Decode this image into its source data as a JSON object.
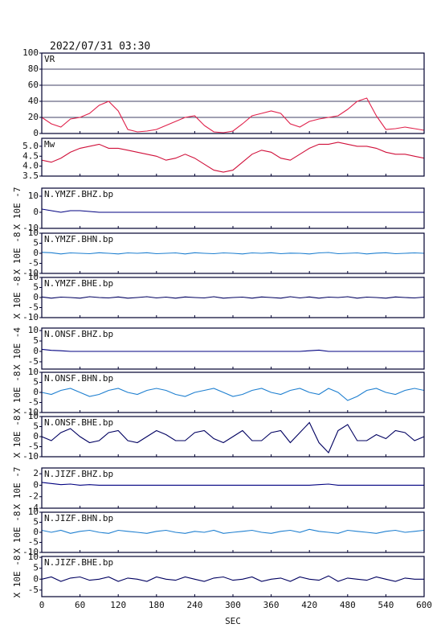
{
  "title": "2022/07/31 03:30",
  "chart_data": [
    {
      "type": "line",
      "title": "VR",
      "color": "#e0204a",
      "grid": true,
      "x": [
        0,
        15,
        30,
        45,
        60,
        75,
        90,
        105,
        120,
        135,
        150,
        165,
        180,
        195,
        210,
        225,
        240,
        255,
        270,
        285,
        300,
        315,
        330,
        345,
        360,
        375,
        390,
        405,
        420,
        435,
        450,
        465,
        480,
        495,
        510,
        525,
        540,
        555,
        570,
        585,
        600
      ],
      "values": [
        20,
        12,
        8,
        18,
        20,
        25,
        35,
        40,
        28,
        5,
        2,
        3,
        5,
        10,
        15,
        20,
        22,
        10,
        2,
        1,
        3,
        12,
        22,
        25,
        28,
        25,
        12,
        8,
        15,
        18,
        20,
        22,
        30,
        40,
        44,
        22,
        5,
        6,
        8,
        6,
        4
      ],
      "xlim": [
        0,
        600
      ],
      "xticks": [
        0,
        60,
        120,
        180,
        240,
        300,
        360,
        420,
        480,
        540,
        600
      ],
      "ylim": [
        0,
        100
      ],
      "yticks": [
        0,
        20,
        40,
        60,
        80,
        100
      ]
    },
    {
      "type": "line",
      "title": "Mw",
      "color": "#d0103a",
      "x": [
        0,
        15,
        30,
        45,
        60,
        75,
        90,
        105,
        120,
        135,
        150,
        165,
        180,
        195,
        210,
        225,
        240,
        255,
        270,
        285,
        300,
        315,
        330,
        345,
        360,
        375,
        390,
        405,
        420,
        435,
        450,
        465,
        480,
        495,
        510,
        525,
        540,
        555,
        570,
        585,
        600
      ],
      "values": [
        4.3,
        4.2,
        4.4,
        4.7,
        4.9,
        5.0,
        5.1,
        4.9,
        4.9,
        4.8,
        4.7,
        4.6,
        4.5,
        4.3,
        4.4,
        4.6,
        4.4,
        4.1,
        3.8,
        3.7,
        3.8,
        4.2,
        4.6,
        4.8,
        4.7,
        4.4,
        4.3,
        4.6,
        4.9,
        5.1,
        5.1,
        5.2,
        5.1,
        5.0,
        5.0,
        4.9,
        4.7,
        4.6,
        4.6,
        4.5,
        4.4
      ],
      "xlim": [
        0,
        600
      ],
      "xticks": [
        0,
        60,
        120,
        180,
        240,
        300,
        360,
        420,
        480,
        540,
        600
      ],
      "ylim": [
        3.5,
        5.4
      ],
      "yticks": [
        3.5,
        {
          "value": 4,
          "label": "4.0"
        },
        4.5,
        {
          "value": 5,
          "label": "5.0"
        }
      ]
    },
    {
      "type": "line",
      "title": "N.YMZF.BHZ.bp",
      "ylabel": "X 10E -7",
      "color": "#000080",
      "x": [
        0,
        15,
        30,
        45,
        60,
        75,
        90,
        105,
        120,
        135,
        150,
        165,
        180,
        195,
        210,
        225,
        240,
        255,
        270,
        285,
        300,
        315,
        330,
        345,
        360,
        375,
        390,
        405,
        420,
        435,
        450,
        465,
        480,
        495,
        510,
        525,
        540,
        555,
        570,
        585,
        600
      ],
      "values": [
        2,
        1,
        0,
        1,
        1,
        0.5,
        0,
        0,
        0,
        0,
        0,
        0,
        0,
        0,
        0,
        0,
        0,
        0,
        0,
        0,
        0,
        0,
        0,
        0,
        0,
        0,
        0,
        0,
        0,
        0,
        0,
        0,
        0,
        0,
        0,
        0,
        0,
        0,
        0,
        0,
        0
      ],
      "xlim": [
        0,
        600
      ],
      "xticks": [
        0,
        60,
        120,
        180,
        240,
        300,
        360,
        420,
        480,
        540,
        600
      ],
      "ylim": [
        -10,
        15
      ],
      "yticks": [
        -10,
        0,
        10
      ]
    },
    {
      "type": "line",
      "title": "N.YMZF.BHN.bp",
      "ylabel": "X 10E -8",
      "color": "#1e7fd0",
      "x": [
        0,
        15,
        30,
        45,
        60,
        75,
        90,
        105,
        120,
        135,
        150,
        165,
        180,
        195,
        210,
        225,
        240,
        255,
        270,
        285,
        300,
        315,
        330,
        345,
        360,
        375,
        390,
        405,
        420,
        435,
        450,
        465,
        480,
        495,
        510,
        525,
        540,
        555,
        570,
        585,
        600
      ],
      "values": [
        0.5,
        0.3,
        -0.3,
        0.2,
        0,
        -0.2,
        0.3,
        0,
        -0.3,
        0.2,
        0,
        0.3,
        -0.2,
        0,
        0.2,
        -0.3,
        0.3,
        0,
        -0.2,
        0.2,
        0,
        -0.3,
        0.2,
        0,
        0.3,
        -0.2,
        0.1,
        0,
        -0.3,
        0.2,
        0.4,
        -0.2,
        0,
        0.2,
        -0.3,
        0.1,
        0.3,
        -0.2,
        0,
        0.2,
        0
      ],
      "xlim": [
        0,
        600
      ],
      "xticks": [
        0,
        60,
        120,
        180,
        240,
        300,
        360,
        420,
        480,
        540,
        600
      ],
      "ylim": [
        -10,
        10
      ],
      "yticks": [
        -10,
        -5,
        0,
        5,
        10
      ]
    },
    {
      "type": "line",
      "title": "N.YMZF.BHE.bp",
      "ylabel": "X 10E -8",
      "color": "#000060",
      "x": [
        0,
        15,
        30,
        45,
        60,
        75,
        90,
        105,
        120,
        135,
        150,
        165,
        180,
        195,
        210,
        225,
        240,
        255,
        270,
        285,
        300,
        315,
        330,
        345,
        360,
        375,
        390,
        405,
        420,
        435,
        450,
        465,
        480,
        495,
        510,
        525,
        540,
        555,
        570,
        585,
        600
      ],
      "values": [
        0.3,
        -0.3,
        0.2,
        0,
        -0.3,
        0.4,
        0,
        -0.2,
        0.3,
        -0.3,
        0,
        0.4,
        -0.2,
        0.2,
        -0.3,
        0.3,
        0,
        -0.2,
        0.4,
        -0.3,
        0,
        0.2,
        -0.3,
        0.3,
        0,
        -0.3,
        0.4,
        -0.2,
        0.3,
        -0.3,
        0.2,
        0,
        0.4,
        -0.3,
        0.2,
        0,
        -0.3,
        0.3,
        0,
        -0.2,
        0.2
      ],
      "xlim": [
        0,
        600
      ],
      "xticks": [
        0,
        60,
        120,
        180,
        240,
        300,
        360,
        420,
        480,
        540,
        600
      ],
      "ylim": [
        -10,
        10
      ],
      "yticks": [
        -10,
        -5,
        0,
        5,
        10
      ]
    },
    {
      "type": "line",
      "title": "N.ONSF.BHZ.bp",
      "ylabel": "X 10E -4",
      "color": "#000080",
      "x": [
        0,
        15,
        30,
        45,
        60,
        75,
        90,
        105,
        120,
        135,
        150,
        165,
        180,
        195,
        210,
        225,
        240,
        255,
        270,
        285,
        300,
        315,
        330,
        345,
        360,
        375,
        390,
        405,
        420,
        435,
        450,
        465,
        480,
        495,
        510,
        525,
        540,
        555,
        570,
        585,
        600
      ],
      "values": [
        1,
        0.5,
        0.3,
        0,
        0,
        0,
        0,
        0,
        0,
        0,
        0,
        0,
        0,
        0,
        0,
        0,
        0,
        0,
        0,
        0,
        0,
        0,
        0,
        0,
        0,
        0,
        0,
        0,
        0.3,
        0.6,
        0,
        0,
        0,
        0,
        0,
        0,
        0,
        0,
        0,
        0,
        0
      ],
      "xlim": [
        0,
        600
      ],
      "xticks": [
        0,
        60,
        120,
        180,
        240,
        300,
        360,
        420,
        480,
        540,
        600
      ],
      "ylim": [
        -8.5,
        11.2
      ],
      "yticks": [
        -5,
        0,
        5,
        10
      ]
    },
    {
      "type": "line",
      "title": "N.ONSF.BHN.bp",
      "ylabel": "X 10E -8",
      "color": "#1e7fd0",
      "x": [
        0,
        15,
        30,
        45,
        60,
        75,
        90,
        105,
        120,
        135,
        150,
        165,
        180,
        195,
        210,
        225,
        240,
        255,
        270,
        285,
        300,
        315,
        330,
        345,
        360,
        375,
        390,
        405,
        420,
        435,
        450,
        465,
        480,
        495,
        510,
        525,
        540,
        555,
        570,
        585,
        600
      ],
      "values": [
        0,
        -1,
        1,
        2,
        0,
        -2,
        -1,
        1,
        2,
        0,
        -1,
        1,
        2,
        1,
        -1,
        -2,
        0,
        1,
        2,
        0,
        -2,
        -1,
        1,
        2,
        0,
        -1,
        1,
        2,
        0,
        -1,
        2,
        0,
        -4,
        -2,
        1,
        2,
        0,
        -1,
        1,
        2,
        1
      ],
      "xlim": [
        0,
        600
      ],
      "xticks": [
        0,
        60,
        120,
        180,
        240,
        300,
        360,
        420,
        480,
        540,
        600
      ],
      "ylim": [
        -10,
        10
      ],
      "yticks": [
        -10,
        -5,
        0,
        5,
        10
      ]
    },
    {
      "type": "line",
      "title": "N.ONSF.BHE.bp",
      "ylabel": "X 10E -8",
      "color": "#000060",
      "x": [
        0,
        15,
        30,
        45,
        60,
        75,
        90,
        105,
        120,
        135,
        150,
        165,
        180,
        195,
        210,
        225,
        240,
        255,
        270,
        285,
        300,
        315,
        330,
        345,
        360,
        375,
        390,
        405,
        420,
        435,
        450,
        465,
        480,
        495,
        510,
        525,
        540,
        555,
        570,
        585,
        600
      ],
      "values": [
        0,
        -2,
        2,
        4,
        0,
        -3,
        -2,
        2,
        3,
        -2,
        -3,
        0,
        3,
        1,
        -2,
        -2,
        2,
        3,
        -1,
        -3,
        0,
        3,
        -2,
        -2,
        2,
        3,
        -3,
        2,
        7,
        -3,
        -8,
        3,
        6,
        -2,
        -2,
        1,
        -1,
        3,
        2,
        -2,
        0
      ],
      "xlim": [
        0,
        600
      ],
      "xticks": [
        0,
        60,
        120,
        180,
        240,
        300,
        360,
        420,
        480,
        540,
        600
      ],
      "ylim": [
        -10,
        10
      ],
      "yticks": [
        -10,
        -5,
        0,
        5,
        10
      ]
    },
    {
      "type": "line",
      "title": "N.JIZF.BHZ.bp",
      "ylabel": "X 10E -7",
      "color": "#000080",
      "x": [
        0,
        15,
        30,
        45,
        60,
        75,
        90,
        105,
        120,
        135,
        150,
        165,
        180,
        195,
        210,
        225,
        240,
        255,
        270,
        285,
        300,
        315,
        330,
        345,
        360,
        375,
        390,
        405,
        420,
        435,
        450,
        465,
        480,
        495,
        510,
        525,
        540,
        555,
        570,
        585,
        600
      ],
      "values": [
        0.5,
        0.3,
        0.1,
        0.2,
        0,
        0.1,
        0,
        0,
        0,
        0,
        0,
        0,
        0,
        0,
        0,
        0,
        0,
        0,
        0,
        0,
        0,
        0,
        0,
        0,
        0,
        0,
        0,
        0,
        0,
        0.1,
        0.2,
        0,
        0,
        0,
        0,
        0,
        0,
        0,
        0,
        0,
        0
      ],
      "xlim": [
        0,
        600
      ],
      "xticks": [
        0,
        60,
        120,
        180,
        240,
        300,
        360,
        420,
        480,
        540,
        600
      ],
      "ylim": [
        -4,
        3
      ],
      "yticks": [
        -4,
        -2,
        0,
        2
      ]
    },
    {
      "type": "line",
      "title": "N.JIZF.BHN.bp",
      "ylabel": "X 10E -8",
      "color": "#1e7fd0",
      "x": [
        0,
        15,
        30,
        45,
        60,
        75,
        90,
        105,
        120,
        135,
        150,
        165,
        180,
        195,
        210,
        225,
        240,
        255,
        270,
        285,
        300,
        315,
        330,
        345,
        360,
        375,
        390,
        405,
        420,
        435,
        450,
        465,
        480,
        495,
        510,
        525,
        540,
        555,
        570,
        585,
        600
      ],
      "values": [
        1,
        0,
        1,
        -0.5,
        0.5,
        1,
        0,
        -0.5,
        1,
        0.5,
        0,
        -0.5,
        0.5,
        1,
        0,
        -0.5,
        0.5,
        0,
        1,
        -0.5,
        0,
        0.5,
        1,
        0,
        -0.5,
        0.5,
        1,
        0,
        1.5,
        0.5,
        0,
        -0.5,
        1,
        0.5,
        0,
        -0.5,
        0.5,
        1,
        0,
        0.5,
        1
      ],
      "xlim": [
        0,
        600
      ],
      "xticks": [
        0,
        60,
        120,
        180,
        240,
        300,
        360,
        420,
        480,
        540,
        600
      ],
      "ylim": [
        -10,
        10
      ],
      "yticks": [
        -10,
        -5,
        0,
        5,
        10
      ]
    },
    {
      "type": "line",
      "title": "N.JIZF.BHE.bp",
      "ylabel": "X 10E -8",
      "xlabel": "SEC",
      "color": "#000060",
      "x": [
        0,
        15,
        30,
        45,
        60,
        75,
        90,
        105,
        120,
        135,
        150,
        165,
        180,
        195,
        210,
        225,
        240,
        255,
        270,
        285,
        300,
        315,
        330,
        345,
        360,
        375,
        390,
        405,
        420,
        435,
        450,
        465,
        480,
        495,
        510,
        525,
        540,
        555,
        570,
        585,
        600
      ],
      "values": [
        0,
        1,
        -1,
        0.5,
        1,
        -0.5,
        0,
        1,
        -1,
        0.5,
        0,
        -1,
        1,
        0,
        -0.5,
        1,
        0,
        -1,
        0.5,
        1,
        -0.5,
        0,
        1,
        -1,
        0,
        0.5,
        -1,
        1,
        0,
        -0.5,
        1.5,
        -1,
        0.5,
        0,
        -0.5,
        1,
        0,
        -1,
        0.5,
        0,
        0
      ],
      "xlim": [
        0,
        600
      ],
      "xticks": [
        0,
        60,
        120,
        180,
        240,
        300,
        360,
        420,
        480,
        540,
        600
      ],
      "ylim": [
        -8,
        10.4
      ],
      "yticks": [
        -5,
        0,
        5,
        10
      ]
    }
  ]
}
